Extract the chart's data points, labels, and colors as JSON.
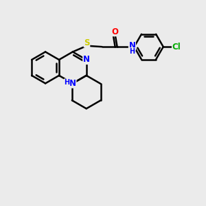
{
  "background_color": "#ebebeb",
  "bond_color": "#000000",
  "bond_width": 1.8,
  "figsize": [
    3.0,
    3.0
  ],
  "dpi": 100,
  "atom_colors": {
    "N": "#0000ff",
    "S": "#cccc00",
    "O": "#ff0000",
    "Cl": "#00aa00",
    "C": "#000000",
    "H": "#0000ff"
  },
  "font_size": 8.5
}
